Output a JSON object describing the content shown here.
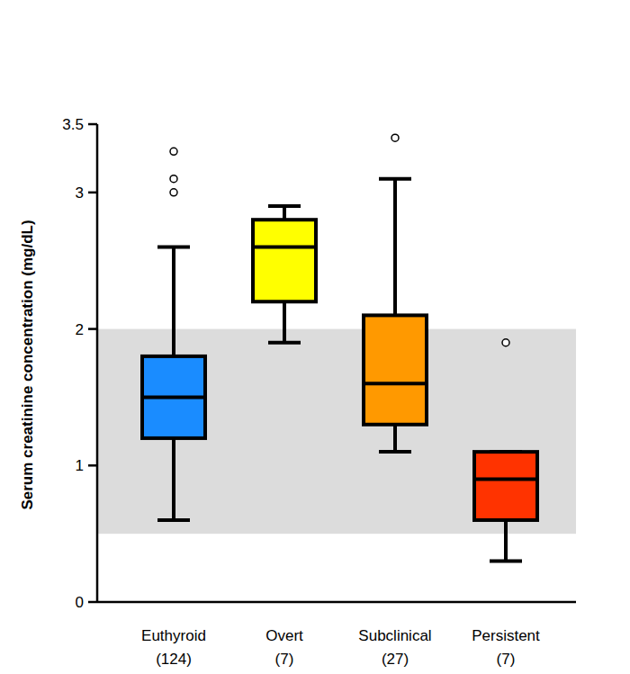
{
  "chart_data": {
    "type": "box",
    "y_label": "Serum creatinine concentration (mg/dL)",
    "categories": [
      "Euthyroid",
      "Overt",
      "Subclinical",
      "Persistent"
    ],
    "n_labels": [
      "(124)",
      "(7)",
      "(27)",
      "(7)"
    ],
    "colors": [
      "#1a8cff",
      "#ffff00",
      "#ff9900",
      "#ff3300"
    ],
    "boxes": [
      {
        "min": 0.6,
        "q1": 1.2,
        "median": 1.5,
        "q3": 1.8,
        "max": 2.6,
        "outliers": [
          3.3,
          3.1,
          3.0
        ]
      },
      {
        "min": 1.9,
        "q1": 2.2,
        "median": 2.6,
        "q3": 2.8,
        "max": 2.9,
        "outliers": []
      },
      {
        "min": 1.1,
        "q1": 1.3,
        "median": 1.6,
        "q3": 2.1,
        "max": 3.1,
        "outliers": [
          3.4
        ]
      },
      {
        "min": 0.3,
        "q1": 0.6,
        "median": 0.9,
        "q3": 1.1,
        "max": 1.1,
        "outliers": [
          1.9
        ]
      }
    ],
    "reference_range": [
      0.5,
      2
    ],
    "ylim": [
      0,
      3.5
    ],
    "yticks": [
      0,
      1,
      2,
      3,
      3.5
    ],
    "grid": false
  }
}
